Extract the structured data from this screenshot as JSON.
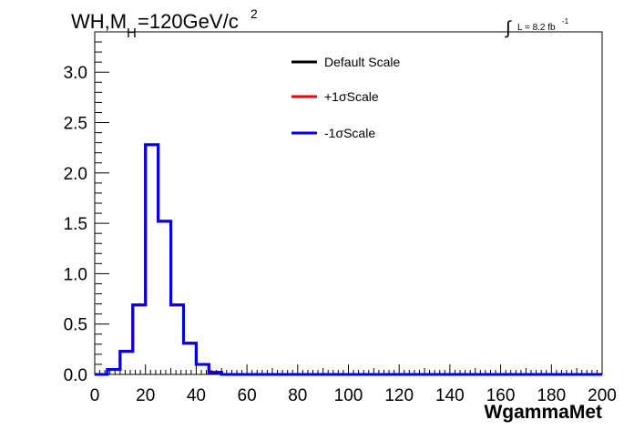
{
  "header": {
    "title_main": "WH,M",
    "title_sub": "H",
    "title_rest": "=120GeV/c",
    "title_sup": "2",
    "lumi_integral": "∫",
    "lumi_text": "L = 8.2 fb",
    "lumi_sup": "-1"
  },
  "chart_data": {
    "type": "line",
    "xlabel": "WgammaMet",
    "ylabel": "",
    "xlim": [
      0,
      200
    ],
    "ylim": [
      0,
      3.4
    ],
    "x_ticks": [
      0,
      20,
      40,
      60,
      80,
      100,
      120,
      140,
      160,
      180,
      200
    ],
    "y_ticks": [
      0.0,
      0.5,
      1.0,
      1.5,
      2.0,
      2.5,
      3.0
    ],
    "x_tick_labels": [
      "0",
      "20",
      "40",
      "60",
      "80",
      "100",
      "120",
      "140",
      "160",
      "180",
      "200"
    ],
    "y_tick_labels": [
      "0.0",
      "0.5",
      "1.0",
      "1.5",
      "2.0",
      "2.5",
      "3.0"
    ],
    "bin_width": 5,
    "bin_edges_start": 0,
    "series": [
      {
        "name": "Default Scale",
        "color": "#000000",
        "values": [
          0,
          0.05,
          0.23,
          0.69,
          2.28,
          1.52,
          0.69,
          0.31,
          0.1,
          0.02,
          0,
          0,
          0,
          0,
          0,
          0,
          0,
          0,
          0,
          0,
          0,
          0,
          0,
          0,
          0,
          0,
          0,
          0,
          0,
          0,
          0,
          0,
          0,
          0,
          0,
          0,
          0,
          0,
          0,
          0
        ]
      },
      {
        "name": "+1σScale",
        "color": "#ff0000",
        "values": [
          0,
          0.05,
          0.23,
          0.69,
          2.28,
          1.52,
          0.69,
          0.31,
          0.1,
          0.02,
          0,
          0,
          0,
          0,
          0,
          0,
          0,
          0,
          0,
          0,
          0,
          0,
          0,
          0,
          0,
          0,
          0,
          0,
          0,
          0,
          0,
          0,
          0,
          0,
          0,
          0,
          0,
          0,
          0,
          0
        ]
      },
      {
        "name": "-1σScale",
        "color": "#0000ee",
        "values": [
          0,
          0.05,
          0.23,
          0.69,
          2.28,
          1.52,
          0.69,
          0.31,
          0.1,
          0.02,
          0,
          0,
          0,
          0,
          0,
          0,
          0,
          0,
          0,
          0,
          0,
          0,
          0,
          0,
          0,
          0,
          0,
          0,
          0,
          0,
          0,
          0,
          0,
          0,
          0,
          0,
          0,
          0,
          0,
          0
        ]
      }
    ],
    "legend_placement": "top-center",
    "grid": false
  }
}
